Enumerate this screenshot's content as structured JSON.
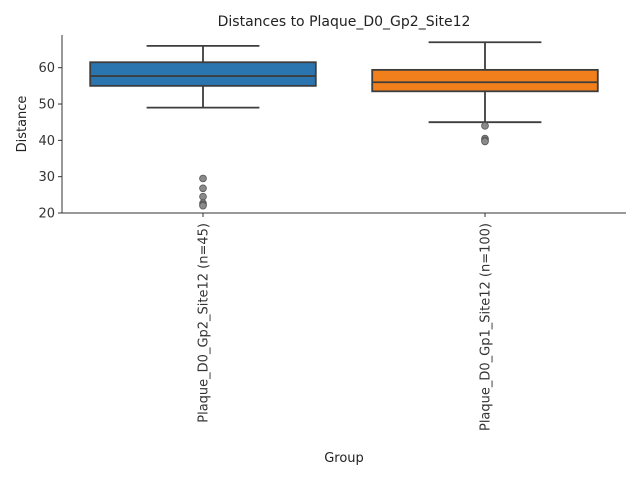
{
  "chart_data": {
    "type": "box",
    "title": "Distances to Plaque_D0_Gp2_Site12",
    "xlabel": "Group",
    "ylabel": "Distance",
    "ylim": [
      20,
      69
    ],
    "yticks": [
      20,
      30,
      40,
      50,
      60
    ],
    "grid": false,
    "legend": "none",
    "groups": [
      {
        "label": "Plaque_D0_Gp2_Site12 (n=45)",
        "color": "#2a75b0",
        "whisker_low": 49,
        "q1": 55,
        "median": 57.7,
        "q3": 61.5,
        "whisker_high": 66,
        "outliers": [
          29.5,
          26.8,
          24.5,
          22.7,
          22.3,
          22.0
        ]
      },
      {
        "label": "Plaque_D0_Gp1_Site12 (n=100)",
        "color": "#f07f1c",
        "whisker_low": 45,
        "q1": 53.5,
        "median": 56,
        "q3": 59.4,
        "whisker_high": 67,
        "outliers": [
          44,
          40.5,
          40,
          39.7
        ]
      }
    ]
  }
}
